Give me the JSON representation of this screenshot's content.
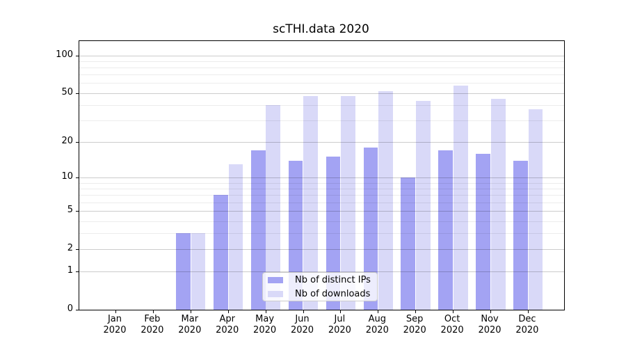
{
  "figure": {
    "title": "scTHI.data 2020"
  },
  "chart_data": {
    "type": "bar",
    "title": "scTHI.data 2020",
    "months": [
      "Jan",
      "Feb",
      "Mar",
      "Apr",
      "May",
      "Jun",
      "Jul",
      "Aug",
      "Sep",
      "Oct",
      "Nov",
      "Dec"
    ],
    "year_label": "2020",
    "series": [
      {
        "name": "Nb of distinct IPs",
        "color": "#a3a3f3",
        "values": [
          0,
          0,
          3,
          7,
          17,
          14,
          15,
          18,
          10,
          17,
          16,
          14
        ]
      },
      {
        "name": "Nb of downloads",
        "color": "#d9d9f8",
        "values": [
          0,
          0,
          3,
          13,
          40,
          47,
          47,
          52,
          43,
          57,
          45,
          37
        ]
      }
    ],
    "yscale": "log1p",
    "y_ticks_major": [
      0,
      1,
      2,
      5,
      10,
      20,
      50,
      100
    ],
    "y_ticks_minor": [
      3,
      4,
      6,
      7,
      8,
      9,
      30,
      40,
      60,
      70,
      80,
      90
    ],
    "ylim": [
      0,
      131
    ],
    "xlabel": "",
    "ylabel": "",
    "grid": true,
    "legend_position": "lower center"
  },
  "colors": {
    "background": "#ffffff",
    "frame": "#000000",
    "grid_major": "#cccccc",
    "grid_minor": "#ececec",
    "text": "#000000",
    "bar_distinct_ips": "#a3a3f3",
    "bar_downloads": "#d9d9f8"
  }
}
